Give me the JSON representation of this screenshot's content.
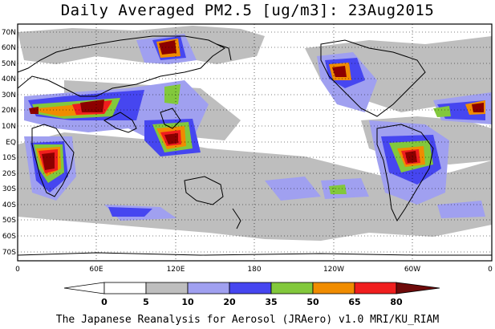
{
  "title": "Daily Averaged PM2.5 [ug/m3]: 23Aug2015",
  "footer": "The Japanese Reanalysis for Aerosol (JRAero) v1.0 MRI/KU_RIAM",
  "map": {
    "projection": "equirectangular",
    "lon_range": [
      0,
      360
    ],
    "lat_range": [
      -75,
      75
    ],
    "lat_labels": [
      "70N",
      "60N",
      "50N",
      "40N",
      "30N",
      "20N",
      "10N",
      "EQ",
      "10S",
      "20S",
      "30S",
      "40S",
      "50S",
      "60S",
      "70S"
    ],
    "lon_labels": [
      "0",
      "60E",
      "120E",
      "180",
      "120W",
      "60W",
      "0"
    ],
    "grid": "dotted"
  },
  "colorbar": {
    "levels": [
      "0",
      "5",
      "10",
      "20",
      "35",
      "50",
      "65",
      "80"
    ],
    "colors": [
      "#ffffff",
      "#bebebe",
      "#a0a0f0",
      "#4646f0",
      "#82c83c",
      "#f08c00",
      "#f01e1e",
      "#8c0000"
    ],
    "end_colors": [
      "#ffffff",
      "#6e0a0a"
    ]
  }
}
